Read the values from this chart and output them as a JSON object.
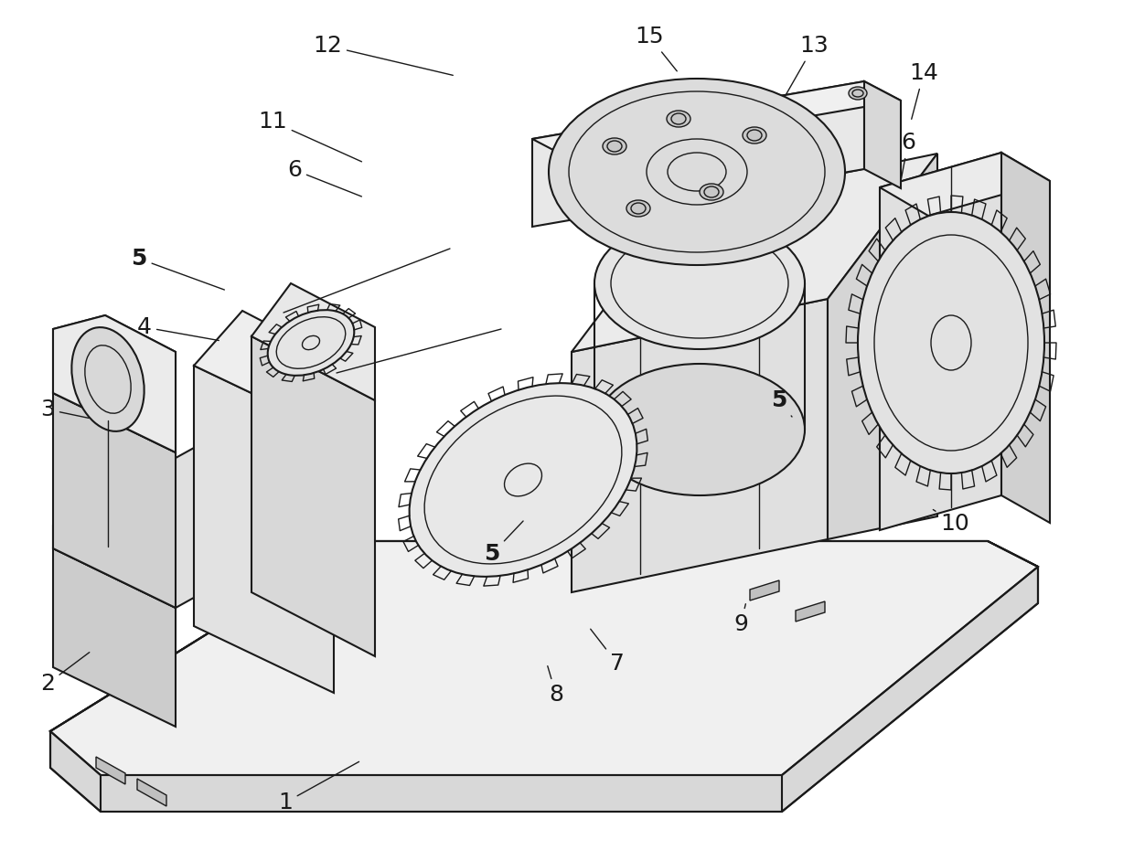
{
  "title": "",
  "background_color": "#ffffff",
  "fig_width": 12.4,
  "fig_height": 9.42,
  "dpi": 100,
  "line_color": "#1a1a1a",
  "text_color": "#1a1a1a",
  "font_size": 18
}
